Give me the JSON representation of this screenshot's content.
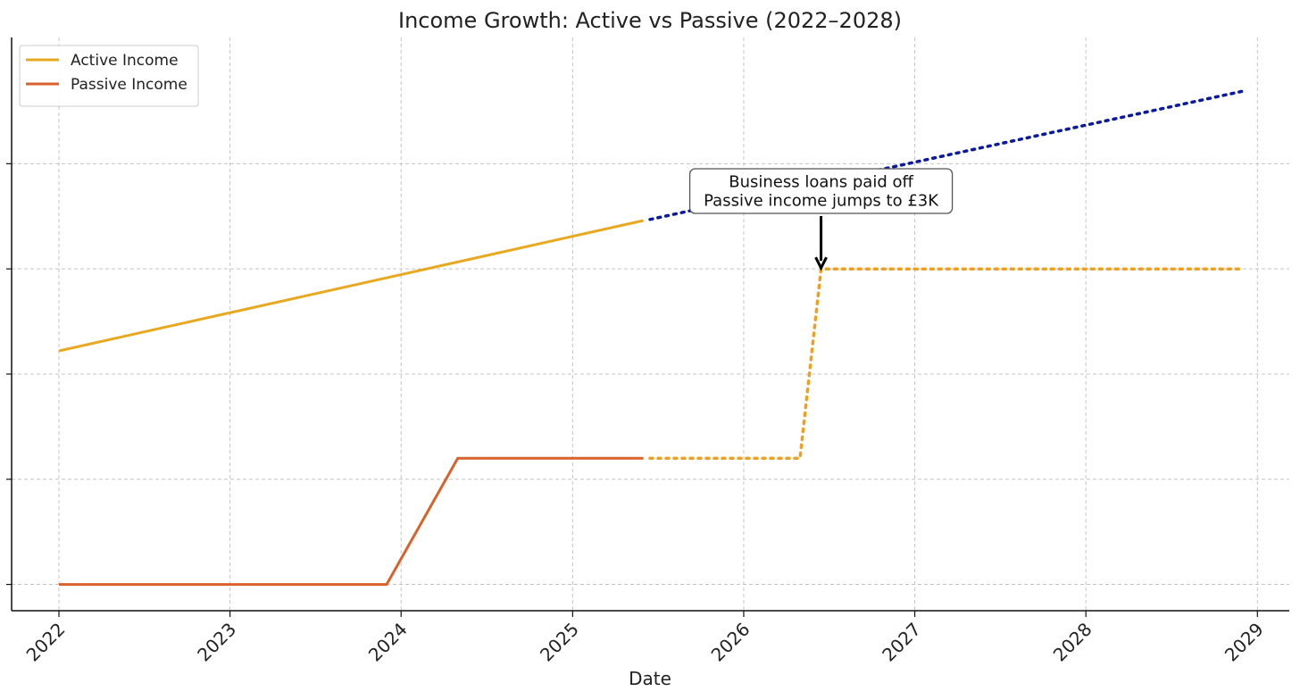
{
  "chart_data": {
    "type": "line",
    "title": "Income Growth: Active vs Passive (2022–2028)",
    "xlabel": "Date",
    "ylabel": "",
    "x_ticks": [
      "2022",
      "2023",
      "2024",
      "2025",
      "2026",
      "2027",
      "2028",
      "2029"
    ],
    "xlim": [
      "2021-09-22",
      "2029-03-10"
    ],
    "ylim": [
      -250,
      5200
    ],
    "y_ticks": [
      0,
      1000,
      2000,
      3000,
      4000
    ],
    "grid": true,
    "legend": {
      "placement": "top-left",
      "entries": [
        {
          "label": "Active Income",
          "color": "#e8a820"
        },
        {
          "label": "Passive Income",
          "color": "#d9622b"
        }
      ]
    },
    "series": [
      {
        "name": "Active Income",
        "color": "#e8a820",
        "style": "solid",
        "points": [
          [
            "2022-01-01",
            2220
          ],
          [
            "2025-06-01",
            3460
          ]
        ]
      },
      {
        "name": "",
        "color": "#0a1aa0",
        "style": "dotted",
        "points": [
          [
            "2025-06-15",
            3470
          ],
          [
            "2028-12-01",
            4690
          ]
        ]
      },
      {
        "name": "Passive Income",
        "color": "#d9622b",
        "style": "solid",
        "points": [
          [
            "2022-01-01",
            0
          ],
          [
            "2023-12-01",
            0
          ],
          [
            "2024-05-01",
            1200
          ],
          [
            "2025-06-01",
            1200
          ]
        ]
      },
      {
        "name": "",
        "color": "#f0a020",
        "style": "dotted",
        "points": [
          [
            "2025-06-15",
            1200
          ],
          [
            "2026-05-01",
            1200
          ],
          [
            "2026-06-15",
            3000
          ],
          [
            "2028-12-01",
            3000
          ]
        ]
      }
    ],
    "annotations": [
      {
        "lines": [
          "Business loans paid off",
          "Passive income jumps to £3K"
        ],
        "target": [
          "2026-06-15",
          3000
        ],
        "text_at": [
          "2026-06-15",
          3740
        ]
      }
    ]
  }
}
